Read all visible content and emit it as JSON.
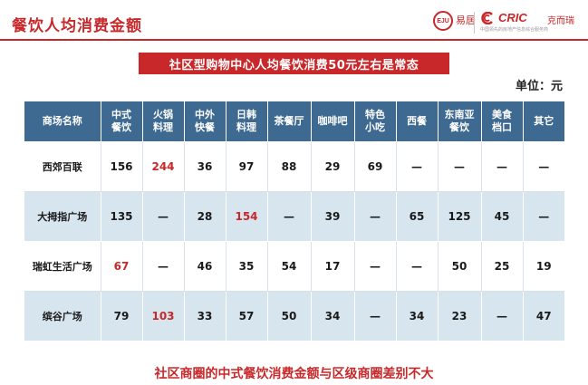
{
  "title": "餐饮人均消费金额",
  "logos": {
    "eju_mark": "EJU",
    "eju_name": "易居",
    "eju_sub": "",
    "cric_brand": "CRIC",
    "cric_cn": "克而瑞",
    "cric_sub": "中国领先的房地产信息综合服务商"
  },
  "banner": "社区型购物中心人均餐饮消费50元左右是常态",
  "unit": "单位：元",
  "table": {
    "headers": [
      "商场名称",
      "中式\n餐饮",
      "火锅\n料理",
      "中外\n快餐",
      "日韩\n料理",
      "茶餐厅",
      "咖啡吧",
      "特色\n小吃",
      "西餐",
      "东南亚\n餐饮",
      "美食\n档口",
      "其它"
    ],
    "rows": [
      {
        "cells": [
          "西郊百联",
          "156",
          "244",
          "36",
          "97",
          "88",
          "29",
          "69",
          "—",
          "—",
          "—",
          "—"
        ],
        "highlight": [
          2
        ]
      },
      {
        "cells": [
          "大拇指广场",
          "135",
          "—",
          "28",
          "154",
          "—",
          "39",
          "—",
          "65",
          "125",
          "45",
          "—"
        ],
        "highlight": [
          4
        ]
      },
      {
        "cells": [
          "瑞虹生活广场",
          "67",
          "—",
          "46",
          "35",
          "54",
          "17",
          "—",
          "—",
          "50",
          "25",
          "19"
        ],
        "highlight": [
          1
        ]
      },
      {
        "cells": [
          "缤谷广场",
          "79",
          "103",
          "33",
          "57",
          "50",
          "34",
          "—",
          "34",
          "23",
          "—",
          "47"
        ],
        "highlight": [
          2
        ]
      }
    ]
  },
  "conclusion": "社区商圈的中式餐饮消费金额与区级商圈差别不大",
  "colors": {
    "accent_red": "#c8282a",
    "header_blue": "#3e6a92",
    "row_tint": "#d7e5ef"
  }
}
